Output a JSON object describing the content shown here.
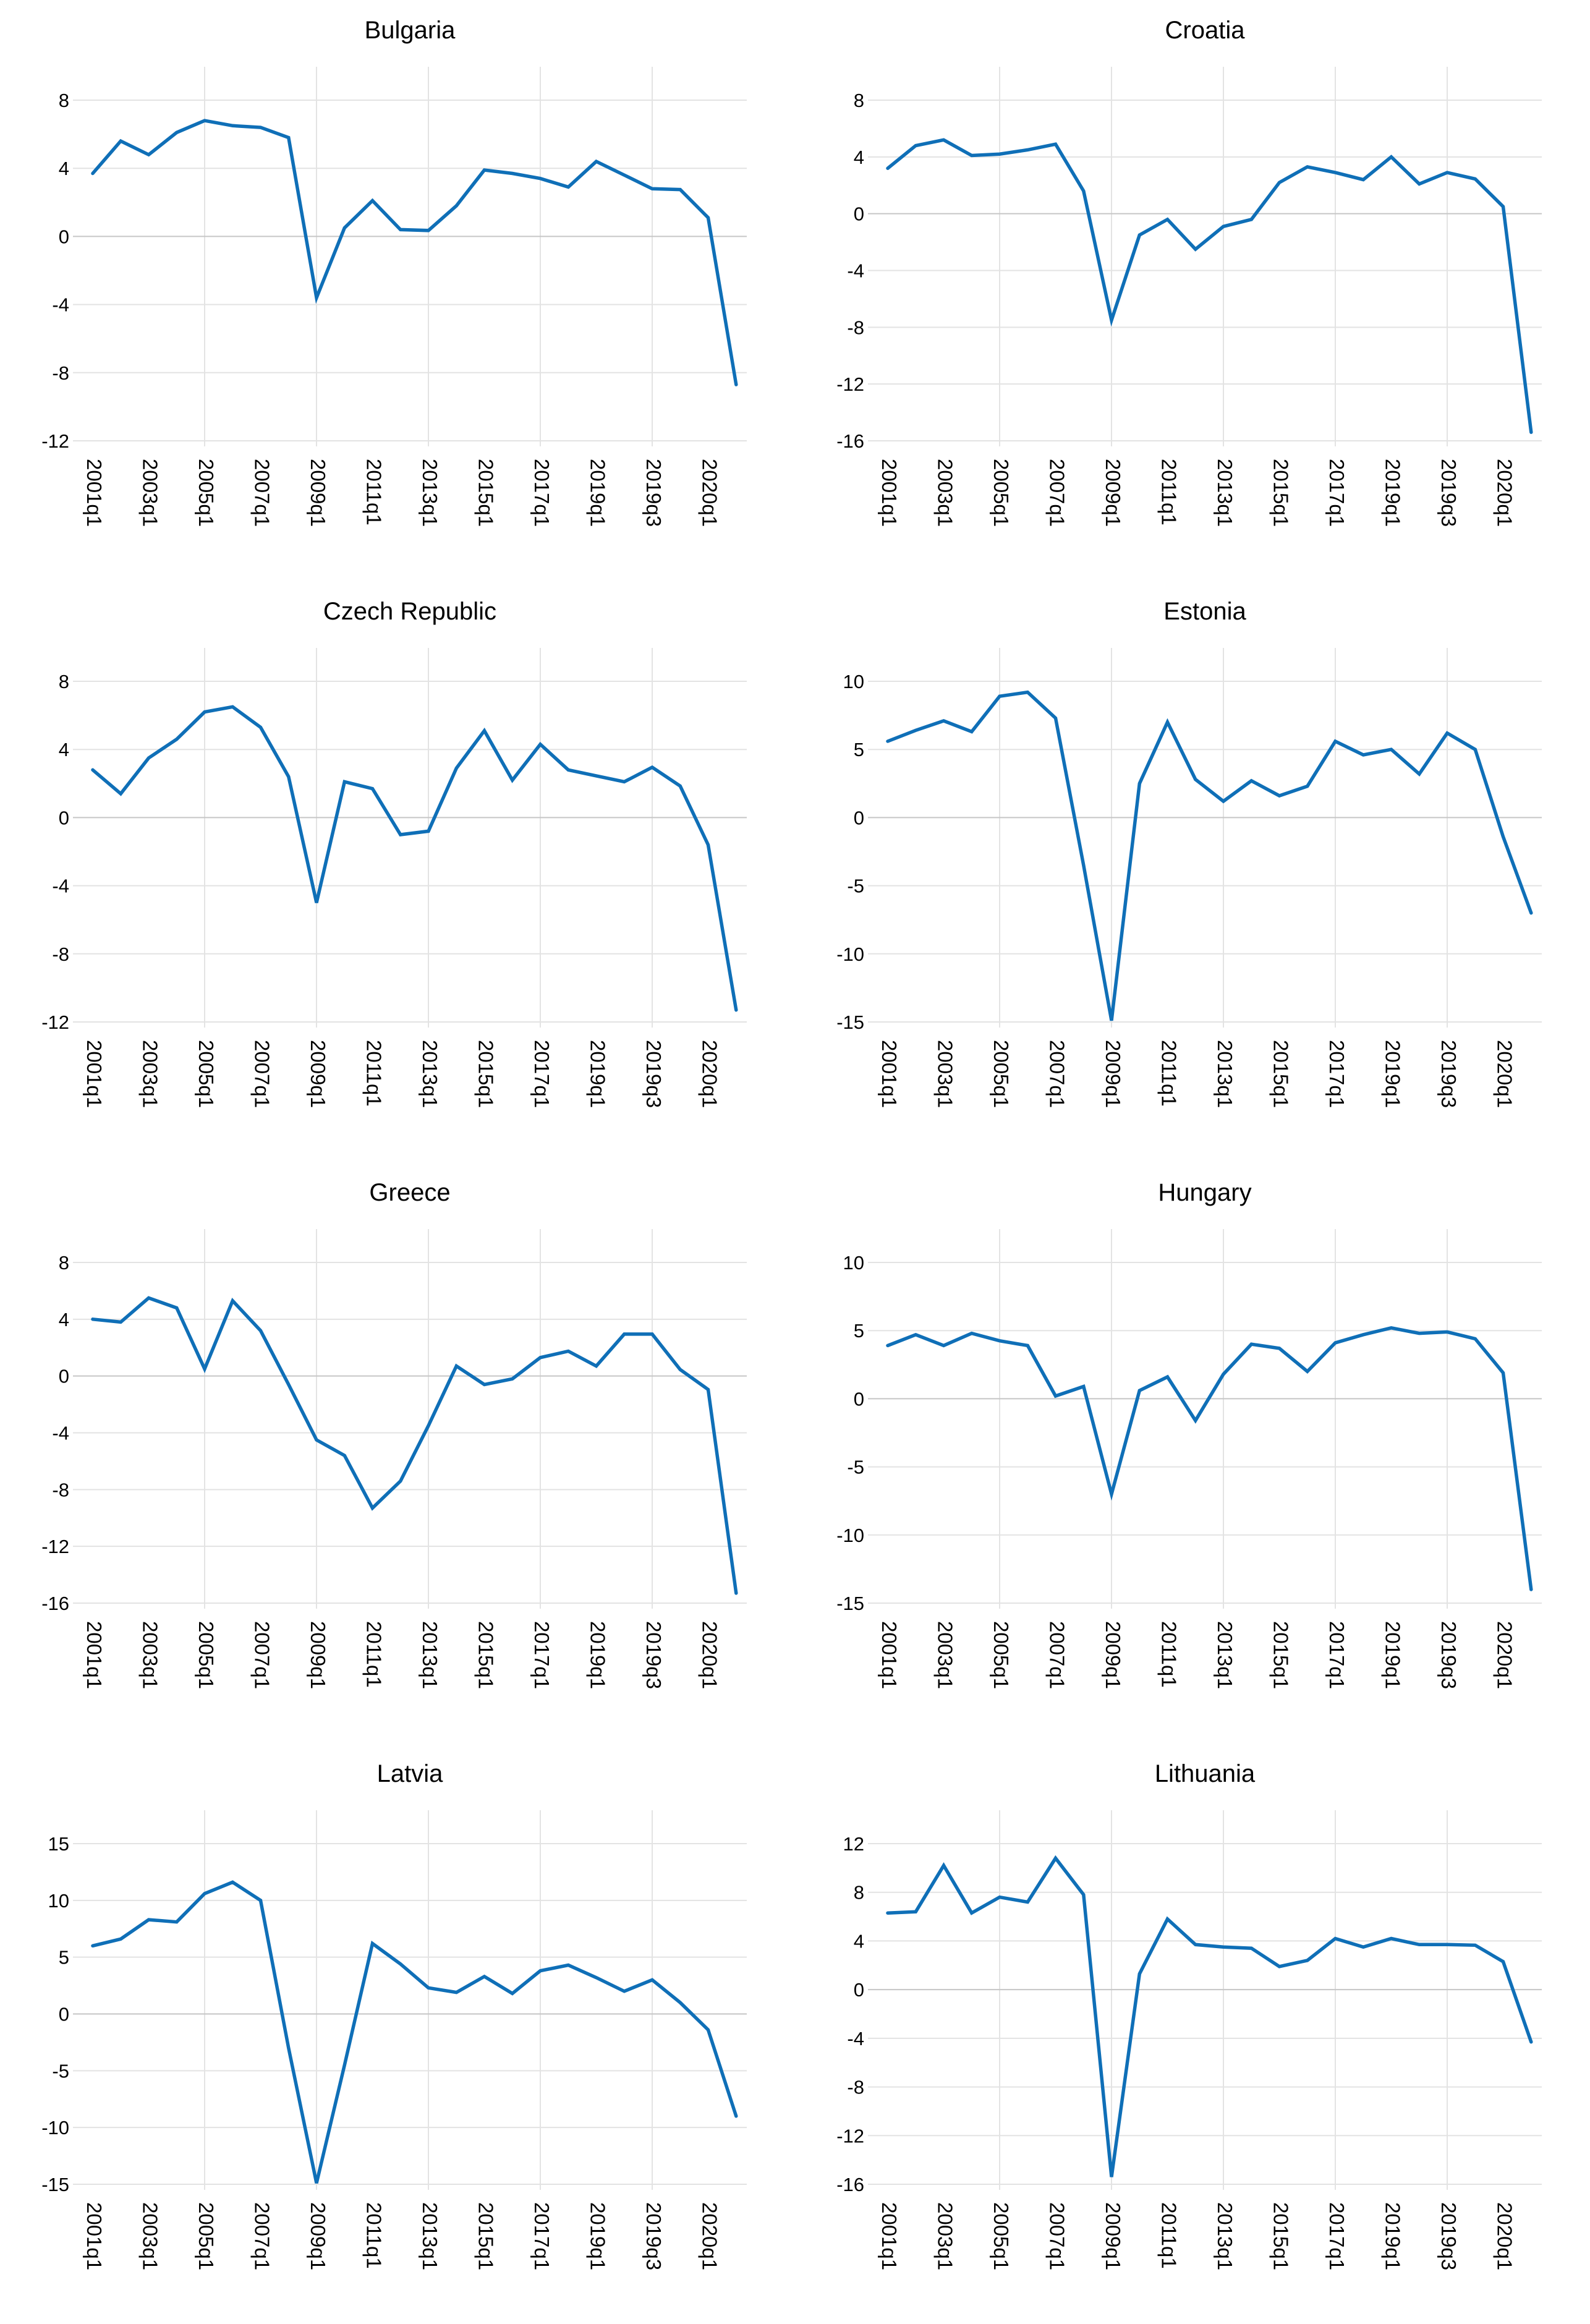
{
  "styles": {
    "line_color": "#0F6FB7",
    "grid_color": "#e3e3e3",
    "zero_grid_color": "#c6c6c6",
    "text_color": "#000000",
    "background": "#ffffff"
  },
  "chart_data": {
    "type": "line",
    "layout": "2x4 small multiples",
    "grid": "light gray horizontal gridlines at every y tick, vertical gridlines every other x tick, darker zero line",
    "legend": "none",
    "x_tick_labels": [
      "2001q1",
      "2003q1",
      "2005q1",
      "2007q1",
      "2009q1",
      "2011q1",
      "2013q1",
      "2015q1",
      "2017q1",
      "2019q1",
      "2019q3",
      "2020q1"
    ],
    "x_timeline": [
      "2001q1",
      "2002q1",
      "2003q1",
      "2004q1",
      "2005q1",
      "2006q1",
      "2007q1",
      "2008q1",
      "2009q1",
      "2010q1",
      "2011q1",
      "2012q1",
      "2013q1",
      "2014q1",
      "2015q1",
      "2016q1",
      "2017q1",
      "2018q1",
      "2019q1",
      "2019q2",
      "2019q3",
      "2019q4",
      "2020q1",
      "2020q2"
    ],
    "charts": [
      {
        "title": "Bulgaria",
        "ylim": [
          -12,
          8
        ],
        "yticks": [
          8,
          4,
          0,
          -4,
          -8,
          -12
        ],
        "values": [
          3.7,
          5.6,
          4.8,
          6.1,
          6.8,
          6.5,
          6.4,
          5.8,
          -3.6,
          0.5,
          2.1,
          0.4,
          0.35,
          1.8,
          3.9,
          3.7,
          3.4,
          2.9,
          4.4,
          3.6,
          2.8,
          2.75,
          1.1,
          -8.7
        ]
      },
      {
        "title": "Croatia",
        "ylim": [
          -16,
          8
        ],
        "yticks": [
          8,
          4,
          0,
          -4,
          -8,
          -12,
          -16
        ],
        "values": [
          3.2,
          4.8,
          5.2,
          4.1,
          4.2,
          4.5,
          4.9,
          1.6,
          -7.5,
          -1.5,
          -0.4,
          -2.5,
          -0.9,
          -0.4,
          2.2,
          3.3,
          2.9,
          2.4,
          4.0,
          2.1,
          2.9,
          2.45,
          0.5,
          -15.4
        ]
      },
      {
        "title": "Czech Republic",
        "ylim": [
          -12,
          8
        ],
        "yticks": [
          8,
          4,
          0,
          -4,
          -8,
          -12
        ],
        "values": [
          2.8,
          1.4,
          3.5,
          4.6,
          6.2,
          6.5,
          5.3,
          2.4,
          -5.0,
          2.1,
          1.7,
          -1.0,
          -0.8,
          2.9,
          5.1,
          2.2,
          4.3,
          2.8,
          2.45,
          2.1,
          2.95,
          1.85,
          -1.6,
          -11.3
        ]
      },
      {
        "title": "Estonia",
        "ylim": [
          -15,
          10
        ],
        "yticks": [
          10,
          5,
          0,
          -5,
          -10,
          -15
        ],
        "values": [
          5.6,
          6.4,
          7.1,
          6.3,
          8.9,
          9.2,
          7.3,
          -3.5,
          -14.9,
          2.5,
          7.0,
          2.8,
          1.2,
          2.7,
          1.6,
          2.3,
          5.6,
          4.6,
          5.0,
          3.2,
          6.2,
          5.0,
          -1.4,
          -7.0
        ]
      },
      {
        "title": "Greece",
        "ylim": [
          -16,
          8
        ],
        "yticks": [
          8,
          4,
          0,
          -4,
          -8,
          -12,
          -16
        ],
        "values": [
          4.0,
          3.8,
          5.5,
          4.8,
          0.5,
          5.3,
          3.2,
          -0.6,
          -4.5,
          -5.6,
          -9.3,
          -7.4,
          -3.5,
          0.7,
          -0.6,
          -0.2,
          1.3,
          1.75,
          0.7,
          2.95,
          2.95,
          0.45,
          -0.95,
          -15.3
        ]
      },
      {
        "title": "Hungary",
        "ylim": [
          -15,
          10
        ],
        "yticks": [
          10,
          5,
          0,
          -5,
          -10,
          -15
        ],
        "values": [
          3.9,
          4.7,
          3.9,
          4.8,
          4.25,
          3.9,
          0.2,
          0.9,
          -7.0,
          0.6,
          1.6,
          -1.6,
          1.8,
          4.0,
          3.7,
          2.0,
          4.1,
          4.7,
          5.2,
          4.8,
          4.9,
          4.4,
          1.9,
          -14.0
        ]
      },
      {
        "title": "Latvia",
        "ylim": [
          -15,
          15
        ],
        "yticks": [
          15,
          10,
          5,
          0,
          -5,
          -10,
          -15
        ],
        "values": [
          6.0,
          6.6,
          8.3,
          8.1,
          10.6,
          11.6,
          10.0,
          -3.0,
          -14.9,
          -4.5,
          6.2,
          4.4,
          2.3,
          1.9,
          3.3,
          1.8,
          3.8,
          4.3,
          3.2,
          2.0,
          3.0,
          1.0,
          -1.4,
          -9.0
        ]
      },
      {
        "title": "Lithuania",
        "ylim": [
          -16,
          12
        ],
        "yticks": [
          12,
          8,
          4,
          0,
          -4,
          -8,
          -12,
          -16
        ],
        "values": [
          6.3,
          6.4,
          10.2,
          6.3,
          7.6,
          7.2,
          10.8,
          7.8,
          -15.4,
          1.3,
          5.8,
          3.7,
          3.5,
          3.4,
          1.9,
          2.4,
          4.2,
          3.5,
          4.2,
          3.7,
          3.7,
          3.65,
          2.3,
          -4.3
        ]
      }
    ]
  }
}
